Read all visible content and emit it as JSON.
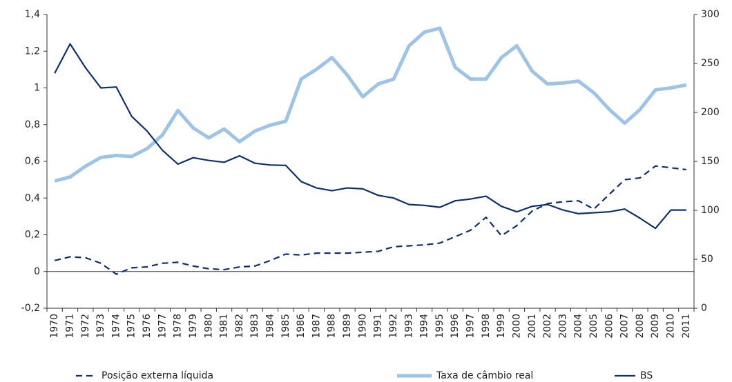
{
  "chart_data": {
    "type": "line",
    "categories": [
      "1970",
      "1971",
      "1972",
      "1973",
      "1974",
      "1975",
      "1976",
      "1977",
      "1978",
      "1979",
      "1980",
      "1981",
      "1982",
      "1983",
      "1984",
      "1985",
      "1986",
      "1987",
      "1988",
      "1989",
      "1990",
      "1991",
      "1992",
      "1993",
      "1994",
      "1995",
      "1996",
      "1997",
      "1998",
      "1999",
      "2000",
      "2001",
      "2002",
      "2003",
      "2004",
      "2005",
      "2006",
      "2007",
      "2008",
      "2009",
      "2010",
      "2011"
    ],
    "ylim": [
      -0.2,
      1.4
    ],
    "yticks": [
      {
        "value": -0.2,
        "label": "-0,2"
      },
      0,
      {
        "value": 0.2,
        "label": "0,2"
      },
      {
        "value": 0.4,
        "label": "0,4"
      },
      {
        "value": 0.6,
        "label": "0,6"
      },
      {
        "value": 0.8,
        "label": "0,8"
      },
      1,
      {
        "value": 1.2,
        "label": "1,2"
      },
      {
        "value": 1.4,
        "label": "1,4"
      }
    ],
    "y2lim": [
      0,
      300
    ],
    "y2ticks": [
      0,
      50,
      100,
      150,
      200,
      250,
      300
    ],
    "series": [
      {
        "name": "Posição externa líquida",
        "color": "#0d2f6b",
        "dashed": true,
        "values": [
          0.06,
          0.08,
          0.075,
          0.045,
          -0.015,
          0.02,
          0.025,
          0.045,
          0.05,
          0.03,
          0.015,
          0.01,
          0.025,
          0.03,
          0.06,
          0.095,
          0.09,
          0.1,
          0.1,
          0.1,
          0.105,
          0.11,
          0.135,
          0.14,
          0.145,
          0.155,
          0.19,
          0.225,
          0.295,
          0.195,
          0.25,
          0.33,
          0.37,
          0.38,
          0.385,
          0.34,
          0.42,
          0.5,
          0.51,
          0.575,
          0.565,
          0.555
        ]
      },
      {
        "name": "Taxa de câmbio real",
        "color": "#9dc3e6",
        "axis": "y2",
        "values": [
          130,
          134,
          145,
          154,
          156,
          155,
          163,
          177,
          202,
          184,
          174,
          183,
          170,
          181,
          187,
          191,
          234,
          244,
          256,
          238,
          216,
          229,
          234,
          268,
          282,
          286,
          246,
          234,
          234,
          256,
          268,
          242,
          229,
          230,
          232,
          220,
          203,
          189,
          203,
          223,
          225,
          228
        ]
      },
      {
        "name": "BS",
        "color": "#0d2f6b",
        "values": [
          1.08,
          1.24,
          1.11,
          1.0,
          1.005,
          0.845,
          0.765,
          0.66,
          0.585,
          0.62,
          0.605,
          0.595,
          0.63,
          0.59,
          0.58,
          0.578,
          0.49,
          0.455,
          0.44,
          0.455,
          0.45,
          0.415,
          0.4,
          0.365,
          0.36,
          0.35,
          0.385,
          0.395,
          0.41,
          0.355,
          0.325,
          0.355,
          0.365,
          0.335,
          0.315,
          0.32,
          0.325,
          0.34,
          0.29,
          0.235,
          0.335,
          0.335
        ]
      }
    ]
  }
}
